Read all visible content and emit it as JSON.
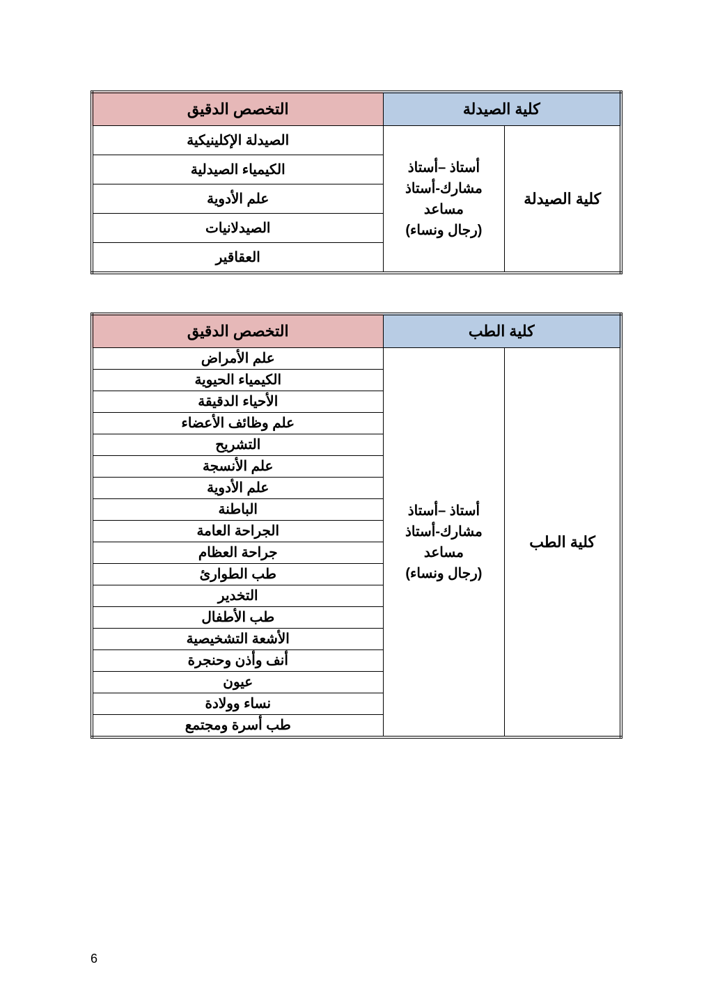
{
  "page_number": "6",
  "colors": {
    "header_blue": "#b8cce4",
    "header_pink": "#e6b8b8",
    "border": "#000000",
    "text": "#000000",
    "background": "#ffffff"
  },
  "table1": {
    "header_right": "كلية الصيدلة",
    "header_left": "التخصص الدقيق",
    "faculty": "كلية الصيدلة",
    "rank_line1": "أستاذ –أستاذ",
    "rank_line2": "مشارك-أستاذ",
    "rank_line3": "مساعد",
    "rank_line4": "(رجال ونساء)",
    "specs": [
      "الصيدلة الإكلينيكية",
      "الكيمياء الصيدلية",
      "علم الأدوية",
      "الصيدلانيات",
      "العقاقير"
    ]
  },
  "table2": {
    "header_right": "كلية الطب",
    "header_left": "التخصص الدقيق",
    "faculty": "كلية الطب",
    "rank_line1": "أستاذ –أستاذ",
    "rank_line2": "مشارك-أستاذ",
    "rank_line3": "مساعد",
    "rank_line4": "(رجال ونساء)",
    "specs": [
      "علم الأمراض",
      "الكيمياء الحيوية",
      "الأحياء الدقيقة",
      "علم وظائف الأعضاء",
      "التشريح",
      "علم الأنسجة",
      "علم الأدوية",
      "الباطنة",
      "الجراحة العامة",
      "جراحة العظام",
      "طب الطوارئ",
      "التخدير",
      "طب الأطفال",
      "الأشعة التشخيصية",
      "أنف وأذن وحنجرة",
      "عيون",
      "نساء وولادة",
      "طب أسرة ومجتمع"
    ]
  }
}
